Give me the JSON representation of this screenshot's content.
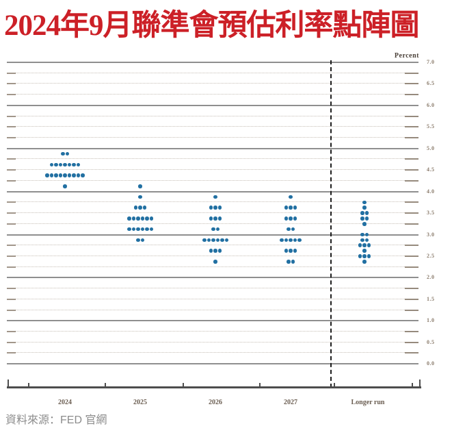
{
  "page": {
    "title": "2024年9月聯準會預估利率點陣圖",
    "source": "資料來源：FED 官網"
  },
  "colors": {
    "title": "#cc2027",
    "dot": "#2270a2",
    "grid_solid": "#8f8f8f",
    "grid_dotted": "#c6beb5"
  },
  "chart_data": {
    "type": "scatter",
    "subtype": "fomc-dot-plot",
    "title": "2024年9月聯準會預估利率點陣圖",
    "ylabel": "Percent",
    "ylim": [
      0.0,
      7.0
    ],
    "gridline_interval": 0.25,
    "y_label_interval": 0.5,
    "y_tick_labels": [
      "7.0",
      "6.5",
      "6.0",
      "5.5",
      "5.0",
      "4.5",
      "4.0",
      "3.5",
      "3.0",
      "2.5",
      "2.0",
      "1.5",
      "1.0",
      "0.5",
      "0.0"
    ],
    "grid": true,
    "legend_position": "none",
    "categories": [
      "2024",
      "2025",
      "2026",
      "2027",
      "Longer run"
    ],
    "series": [
      {
        "name": "2024",
        "dots": [
          {
            "rate": 4.875,
            "count": 2
          },
          {
            "rate": 4.625,
            "count": 7
          },
          {
            "rate": 4.375,
            "count": 9
          },
          {
            "rate": 4.125,
            "count": 1
          }
        ]
      },
      {
        "name": "2025",
        "dots": [
          {
            "rate": 4.125,
            "count": 1
          },
          {
            "rate": 3.875,
            "count": 1
          },
          {
            "rate": 3.625,
            "count": 3
          },
          {
            "rate": 3.375,
            "count": 6
          },
          {
            "rate": 3.125,
            "count": 6
          },
          {
            "rate": 2.875,
            "count": 2
          }
        ]
      },
      {
        "name": "2026",
        "dots": [
          {
            "rate": 3.875,
            "count": 1
          },
          {
            "rate": 3.625,
            "count": 3
          },
          {
            "rate": 3.375,
            "count": 3
          },
          {
            "rate": 3.125,
            "count": 2
          },
          {
            "rate": 2.875,
            "count": 6
          },
          {
            "rate": 2.625,
            "count": 3
          },
          {
            "rate": 2.375,
            "count": 1
          }
        ]
      },
      {
        "name": "2027",
        "dots": [
          {
            "rate": 3.875,
            "count": 1
          },
          {
            "rate": 3.625,
            "count": 3
          },
          {
            "rate": 3.375,
            "count": 3
          },
          {
            "rate": 3.125,
            "count": 2
          },
          {
            "rate": 2.875,
            "count": 5
          },
          {
            "rate": 2.625,
            "count": 3
          },
          {
            "rate": 2.375,
            "count": 2
          }
        ]
      },
      {
        "name": "Longer run",
        "dots": [
          {
            "rate": 3.75,
            "count": 1
          },
          {
            "rate": 3.625,
            "count": 1
          },
          {
            "rate": 3.5,
            "count": 2
          },
          {
            "rate": 3.375,
            "count": 2
          },
          {
            "rate": 3.25,
            "count": 1
          },
          {
            "rate": 3.0,
            "count": 2
          },
          {
            "rate": 2.875,
            "count": 2
          },
          {
            "rate": 2.75,
            "count": 3
          },
          {
            "rate": 2.625,
            "count": 1
          },
          {
            "rate": 2.5,
            "count": 3
          },
          {
            "rate": 2.375,
            "count": 1
          }
        ]
      }
    ]
  }
}
